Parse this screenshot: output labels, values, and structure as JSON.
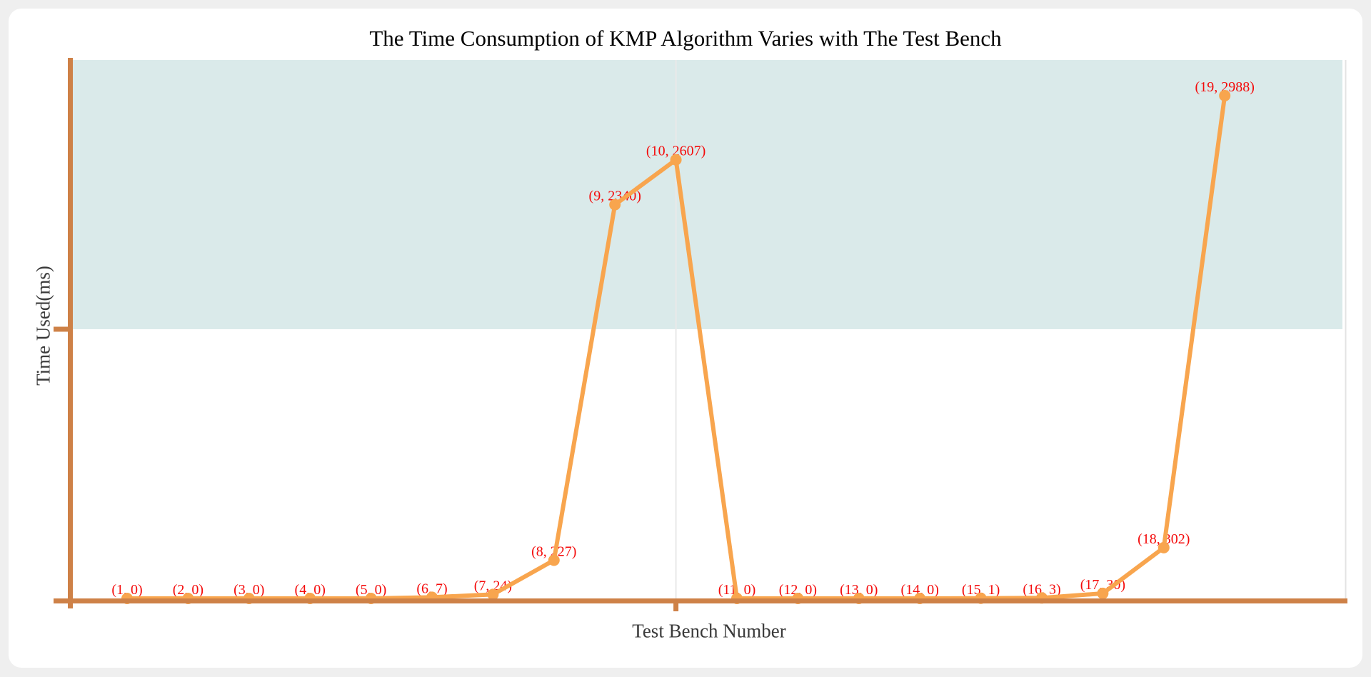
{
  "chart_data": {
    "type": "line",
    "title": "The Time Consumption of KMP Algorithm Varies with The Test Bench",
    "xlabel": "Test Bench Number",
    "ylabel": "Time Used(ms)",
    "x": [
      1,
      2,
      3,
      4,
      5,
      6,
      7,
      8,
      9,
      10,
      11,
      12,
      13,
      14,
      15,
      16,
      17,
      18,
      19
    ],
    "values": [
      0,
      0,
      0,
      0,
      0,
      7,
      24,
      227,
      2340,
      2607,
      0,
      0,
      0,
      0,
      1,
      3,
      30,
      302,
      2988
    ],
    "point_labels": [
      "(1, 0)",
      "(2, 0)",
      "(3, 0)",
      "(4, 0)",
      "(5, 0)",
      "(6, 7)",
      "(7, 24)",
      "(8, 227)",
      "(9, 2340)",
      "(10, 2607)",
      "(11, 0)",
      "(12, 0)",
      "(13, 0)",
      "(14, 0)",
      "(15, 1)",
      "(16, 3)",
      "(17, 30)",
      "(18, 302)",
      "(19, 2988)"
    ],
    "xlim": [
      0,
      20
    ],
    "ylim": [
      0,
      3200
    ],
    "x_tick_values": [
      0,
      10
    ],
    "y_tick_values": [
      0,
      1600
    ],
    "tick_labels_shown": false,
    "legend": null,
    "grid": {
      "vertical_gridline_at_x": 10,
      "shaded_band_y_from": 1600,
      "shaded_band_y_to": 3200
    }
  },
  "colors": {
    "page_background": "#efefef",
    "panel_background": "#ffffff",
    "series_line": "#f8a54e",
    "marker": "#f8a54e",
    "axis": "#ce8147",
    "point_label": "#f40b0b",
    "band": "#daeaea",
    "gridline": "#e9e9e9",
    "plot_right_border": "#e3e3e3",
    "axis_title": "#3a3a3a",
    "title": "#000000"
  }
}
